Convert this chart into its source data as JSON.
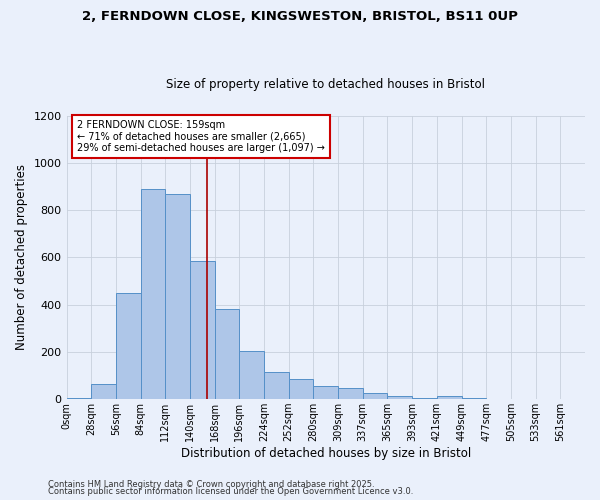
{
  "title1": "2, FERNDOWN CLOSE, KINGSWESTON, BRISTOL, BS11 0UP",
  "title2": "Size of property relative to detached houses in Bristol",
  "xlabel": "Distribution of detached houses by size in Bristol",
  "ylabel": "Number of detached properties",
  "bin_labels": [
    "0sqm",
    "28sqm",
    "56sqm",
    "84sqm",
    "112sqm",
    "140sqm",
    "168sqm",
    "196sqm",
    "224sqm",
    "252sqm",
    "280sqm",
    "309sqm",
    "337sqm",
    "365sqm",
    "393sqm",
    "421sqm",
    "449sqm",
    "477sqm",
    "505sqm",
    "533sqm",
    "561sqm"
  ],
  "bar_values": [
    7,
    65,
    450,
    890,
    870,
    585,
    380,
    205,
    115,
    85,
    55,
    48,
    25,
    12,
    5,
    13,
    5,
    2,
    2,
    1,
    1
  ],
  "bar_color": "#aec6e8",
  "bar_edge_color": "#5590c8",
  "bg_color": "#eaf0fb",
  "grid_color": "#c8d0dc",
  "annotation_text": "2 FERNDOWN CLOSE: 159sqm\n← 71% of detached houses are smaller (2,665)\n29% of semi-detached houses are larger (1,097) →",
  "annotation_box_color": "#ffffff",
  "annotation_box_edge": "#cc0000",
  "vline_color": "#aa0000",
  "ylim": [
    0,
    1200
  ],
  "yticks": [
    0,
    200,
    400,
    600,
    800,
    1000,
    1200
  ],
  "footer1": "Contains HM Land Registry data © Crown copyright and database right 2025.",
  "footer2": "Contains public sector information licensed under the Open Government Licence v3.0."
}
